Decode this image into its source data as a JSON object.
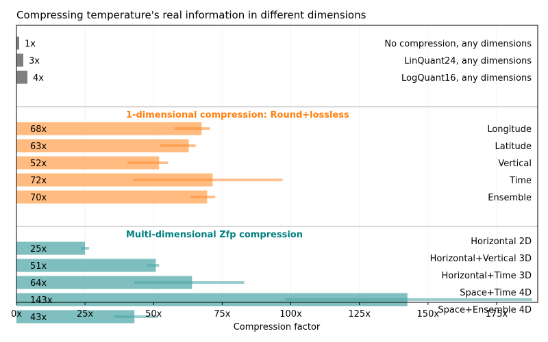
{
  "chart_data": {
    "type": "bar",
    "orientation": "horizontal",
    "title": "Compressing temperature's real information in different dimensions",
    "xlabel": "Compression factor",
    "ylabel": "",
    "xlim": [
      0,
      190
    ],
    "xticks": [
      {
        "value": 0,
        "label": "0x"
      },
      {
        "value": 25,
        "label": "25x"
      },
      {
        "value": 50,
        "label": "50x"
      },
      {
        "value": 75,
        "label": "75x"
      },
      {
        "value": 100,
        "label": "100x"
      },
      {
        "value": 125,
        "label": "125x"
      },
      {
        "value": 150,
        "label": "150x"
      },
      {
        "value": 175,
        "label": "175x"
      }
    ],
    "grid": "vertical-faint",
    "groups": [
      {
        "title": "",
        "title_color": "",
        "bar_color": "#7f7f7f",
        "bars": [
          {
            "label": "No compression, any dimensions",
            "value": 1,
            "value_label": "1x"
          },
          {
            "label": "LinQuant24, any dimensions",
            "value": 2.5,
            "value_label": "3x"
          },
          {
            "label": "LogQuant16, any dimensions",
            "value": 4,
            "value_label": "4x"
          }
        ]
      },
      {
        "title": "1-dimensional compression: Round+lossless",
        "title_color": "#ff7f0e",
        "bar_color": "#ffbb80",
        "range_color": "#ff8c33",
        "bars": [
          {
            "label": "Longitude",
            "value": 67.5,
            "value_label": "68x",
            "range": [
              57.5,
              70.5
            ]
          },
          {
            "label": "Latitude",
            "value": 62.8,
            "value_label": "63x",
            "range": [
              52.5,
              65.3
            ]
          },
          {
            "label": "Vertical",
            "value": 52,
            "value_label": "52x",
            "range": [
              40.5,
              55.3
            ]
          },
          {
            "label": "Time",
            "value": 71.5,
            "value_label": "72x",
            "range": [
              42.5,
              97
            ]
          },
          {
            "label": "Ensemble",
            "value": 69.5,
            "value_label": "70x",
            "range": [
              63.5,
              72.5
            ]
          }
        ]
      },
      {
        "title": "Multi-dimensional Zfp compression",
        "title_color": "#008080",
        "bar_color": "#7fbfbf",
        "range_color": "#4da6a6",
        "bars": [
          {
            "label": "Horizontal 2D",
            "value": 25,
            "value_label": "25x",
            "range": [
              23.5,
              26.5
            ]
          },
          {
            "label": "Horizontal+Vertical 3D",
            "value": 50.8,
            "value_label": "51x",
            "range": [
              47.5,
              52
            ]
          },
          {
            "label": "Horizontal+Time 3D",
            "value": 64,
            "value_label": "64x",
            "range": [
              43,
              83
            ]
          },
          {
            "label": "Space+Time 4D",
            "value": 142.5,
            "value_label": "143x",
            "range": [
              98,
              188
            ]
          },
          {
            "label": "Space+Ensemble 4D",
            "value": 43,
            "value_label": "43x",
            "range": [
              35.5,
              51.5
            ]
          }
        ]
      }
    ]
  }
}
